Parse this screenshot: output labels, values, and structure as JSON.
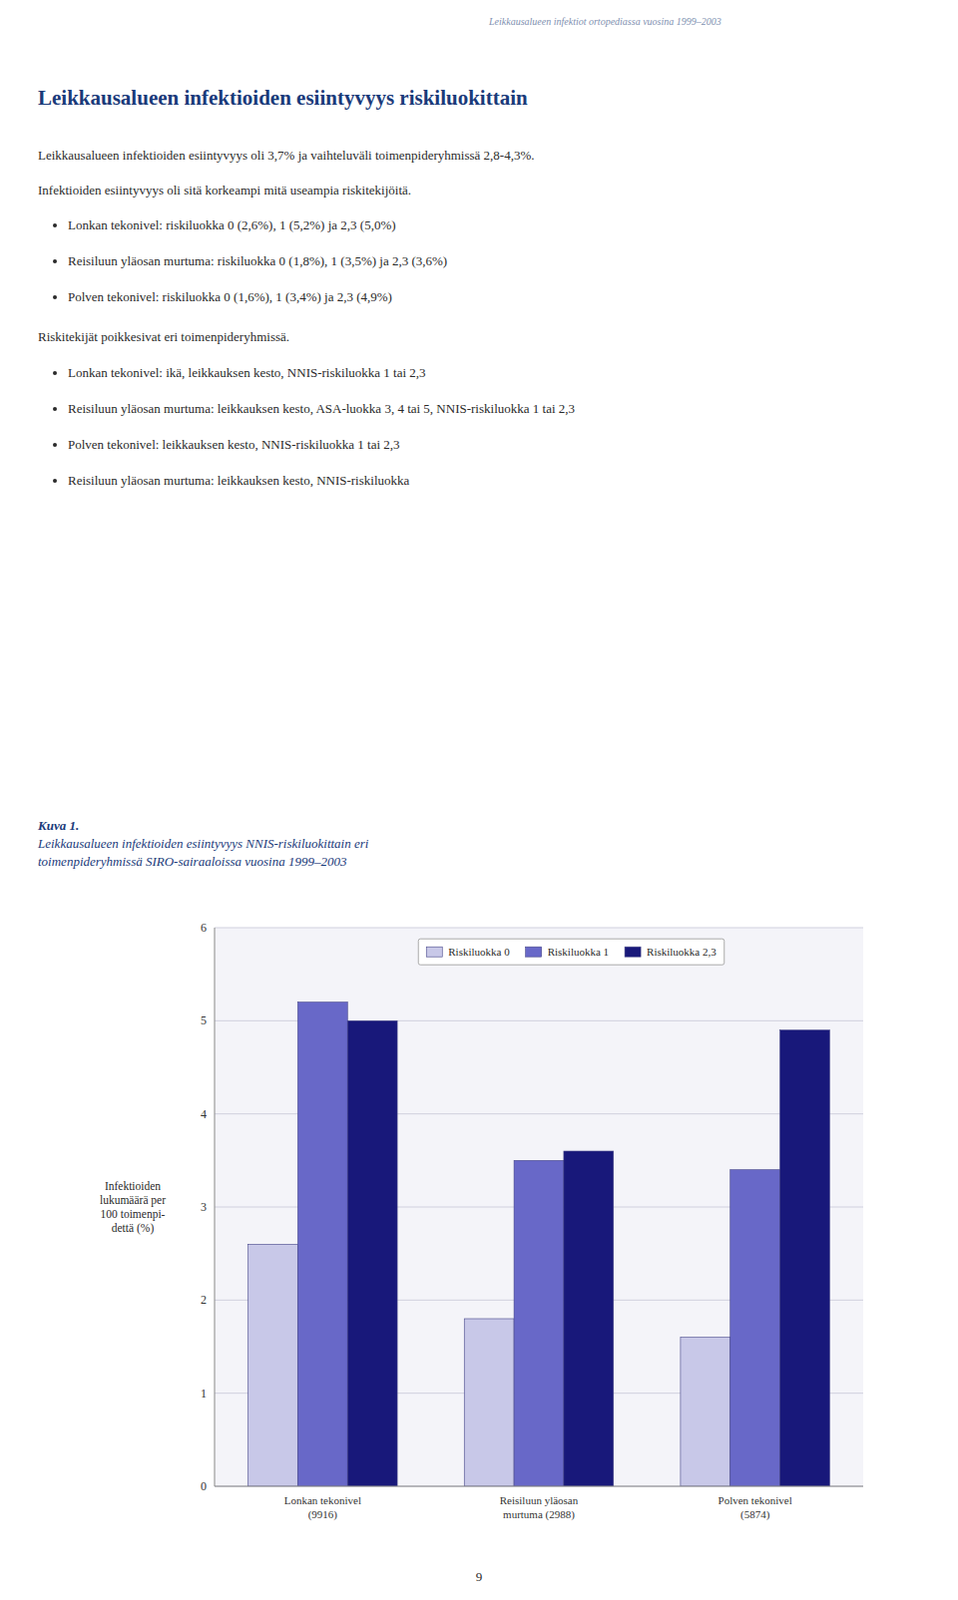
{
  "page_header": "Leikkausalueen infektiot ortopediassa vuosina 1999–2003",
  "main_title": "Leikkausalueen infektioiden esiintyvyys riskiluokittain",
  "para1": "Leikkausalueen infektioiden esiintyvyys oli 3,7% ja vaihteluväli toimenpideryhmissä 2,8-4,3%.",
  "para2": "Infektioiden esiintyvyys oli sitä korkeampi mitä useampia riskitekijöitä.",
  "bullets1": [
    "Lonkan tekonivel: riskiluokka 0 (2,6%), 1 (5,2%) ja 2,3 (5,0%)",
    "Reisiluun yläosan murtuma: riskiluokka 0 (1,8%), 1 (3,5%) ja 2,3 (3,6%)",
    "Polven tekonivel: riskiluokka 0 (1,6%), 1 (3,4%) ja 2,3 (4,9%)"
  ],
  "para3": "Riskitekijät poikkesivat eri toimenpideryhmissä.",
  "bullets2": [
    "Lonkan tekonivel: ikä, leikkauksen kesto, NNIS-riskiluokka 1 tai 2,3",
    "Reisiluun yläosan murtuma: leikkauksen kesto, ASA-luokka 3, 4 tai 5, NNIS-riskiluokka 1 tai 2,3",
    "Polven tekonivel: leikkauksen kesto, NNIS-riskiluokka 1 tai 2,3",
    "Reisiluun yläosan murtuma: leikkauksen kesto, NNIS-riskiluokka"
  ],
  "figure_caption_bold": "Kuva 1.",
  "figure_caption_italic_line1": "Leikkausalueen infektioiden esiintyvyys NNIS-riskiluokittain eri",
  "figure_caption_italic_line2": "toimenpideryhmissä SIRO-sairaaloissa vuosina 1999–2003",
  "page_number": "9",
  "chart_data": {
    "type": "bar",
    "categories": [
      "Lonkan tekonivel\n(9916)",
      "Reisiluun yläosan\nmurtuma (2988)",
      "Polven tekonivel\n(5874)"
    ],
    "series": [
      {
        "name": "Riskiluokka 0",
        "color": "#c8c8e8",
        "values": [
          2.6,
          1.8,
          1.6
        ]
      },
      {
        "name": "Riskiluokka 1",
        "color": "#6868c8",
        "values": [
          5.2,
          3.5,
          3.4
        ]
      },
      {
        "name": "Riskiluokka 2,3",
        "color": "#18187a",
        "values": [
          5.0,
          3.6,
          4.9
        ]
      }
    ],
    "y_label": "Infektioiden\nlukumäärä per\n100 toimenpi-\ndettä (%)",
    "ylim": [
      0,
      6
    ],
    "yticks": [
      0,
      1,
      2,
      3,
      4,
      5,
      6
    ],
    "grid": true,
    "legend": "top"
  }
}
